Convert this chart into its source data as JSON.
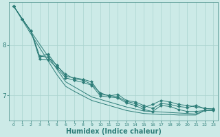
{
  "background_color": "#cceae7",
  "grid_color": "#aad4d0",
  "line_color": "#2d7d78",
  "xlabel": "Humidex (Indice chaleur)",
  "xlabel_fontsize": 7,
  "yticks": [
    7,
    8
  ],
  "xlim": [
    -0.5,
    23.5
  ],
  "ylim": [
    6.5,
    8.85
  ],
  "x": [
    0,
    1,
    2,
    3,
    4,
    5,
    6,
    7,
    8,
    9,
    10,
    11,
    12,
    13,
    14,
    15,
    16,
    17,
    18,
    19,
    20,
    21,
    22,
    23
  ],
  "series1": [
    8.78,
    8.52,
    8.28,
    7.78,
    7.76,
    7.6,
    7.38,
    7.35,
    7.32,
    7.27,
    7.02,
    7.0,
    6.97,
    6.88,
    6.84,
    6.76,
    6.82,
    6.9,
    6.87,
    6.82,
    6.8,
    6.77,
    6.74,
    6.73
  ],
  "series2": [
    8.78,
    8.52,
    8.28,
    7.78,
    7.82,
    7.58,
    7.42,
    7.33,
    7.3,
    7.22,
    7.05,
    6.99,
    7.02,
    6.9,
    6.87,
    6.8,
    6.74,
    6.84,
    6.82,
    6.78,
    6.76,
    6.8,
    6.74,
    6.73
  ],
  "series3": [
    8.78,
    8.52,
    8.28,
    7.72,
    7.71,
    7.55,
    7.35,
    7.3,
    7.26,
    7.2,
    6.99,
    6.97,
    6.95,
    6.85,
    6.8,
    6.72,
    6.68,
    6.8,
    6.78,
    6.72,
    6.68,
    6.68,
    6.7,
    6.7
  ],
  "series4_straight": [
    8.78,
    8.52,
    8.27,
    8.02,
    7.77,
    7.52,
    7.27,
    7.17,
    7.07,
    6.97,
    6.92,
    6.87,
    6.82,
    6.77,
    6.73,
    6.69,
    6.68,
    6.67,
    6.66,
    6.65,
    6.64,
    6.63,
    6.7,
    6.7
  ],
  "series5_straight": [
    8.78,
    8.5,
    8.22,
    7.95,
    7.68,
    7.41,
    7.18,
    7.08,
    6.99,
    6.9,
    6.85,
    6.8,
    6.75,
    6.7,
    6.67,
    6.64,
    6.63,
    6.62,
    6.62,
    6.61,
    6.61,
    6.61,
    6.7,
    6.7
  ]
}
